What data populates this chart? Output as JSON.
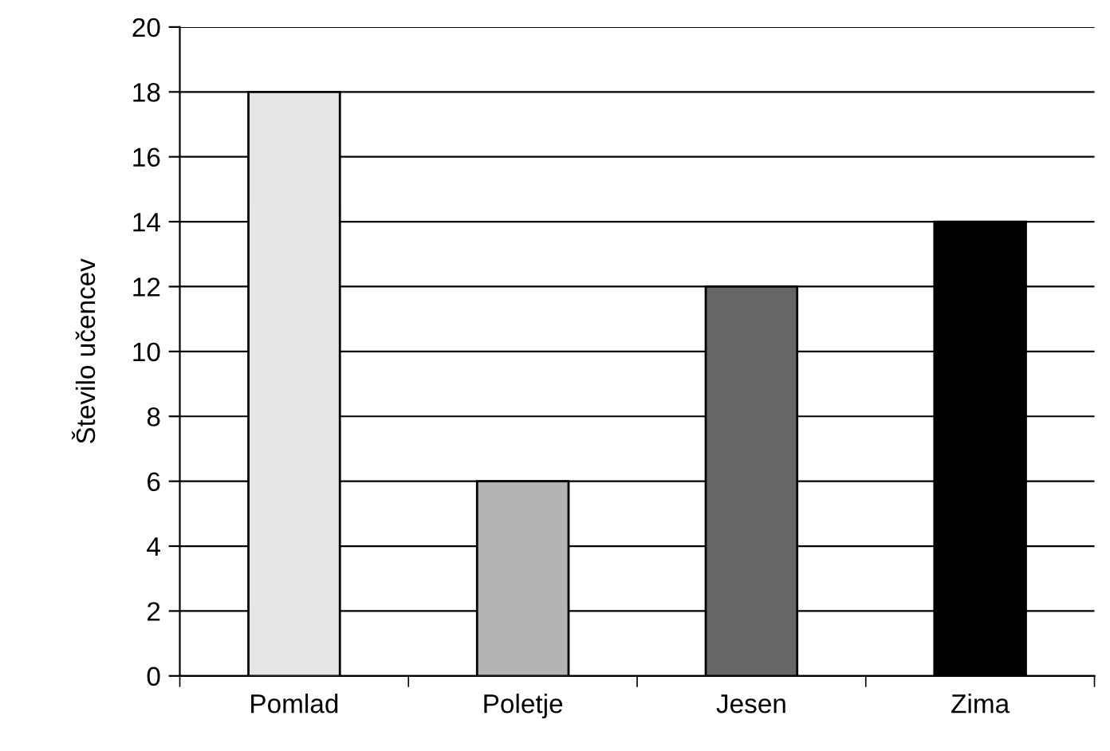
{
  "chart_data": {
    "type": "bar",
    "ylabel": "Število učencev",
    "categories": [
      "Pomlad",
      "Poletje",
      "Jesen",
      "Zima"
    ],
    "values": [
      18,
      6,
      12,
      14
    ],
    "colors": [
      "#e6e6e6",
      "#b3b3b3",
      "#666666",
      "#000000"
    ],
    "ylim": [
      0,
      20
    ],
    "yticks": [
      0,
      2,
      4,
      6,
      8,
      10,
      12,
      14,
      16,
      18,
      20
    ],
    "grid": "y",
    "legend": false
  }
}
